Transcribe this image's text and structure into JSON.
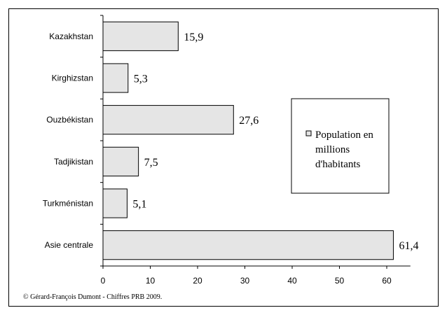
{
  "chart_data": {
    "type": "bar",
    "orientation": "horizontal",
    "categories": [
      "Kazakhstan",
      "Kirghizstan",
      "Ouzbékistan",
      "Tadjikistan",
      "Turkménistan",
      "Asie centrale"
    ],
    "values": [
      15.9,
      5.3,
      27.6,
      7.5,
      5.1,
      61.4
    ],
    "value_labels": [
      "15,9",
      "5,3",
      "27,6",
      "7,5",
      "5,1",
      "61,4"
    ],
    "xlim": [
      0,
      65
    ],
    "xticks": [
      0,
      10,
      20,
      30,
      40,
      50,
      60
    ],
    "grid": false,
    "legend": {
      "lines": [
        "Population en",
        "millions",
        "d'habitants"
      ],
      "placement": "right"
    },
    "bar_color": "#e5e5e5"
  },
  "footer": "© Gérard-François Dumont - Chiffres  PRB 2009."
}
